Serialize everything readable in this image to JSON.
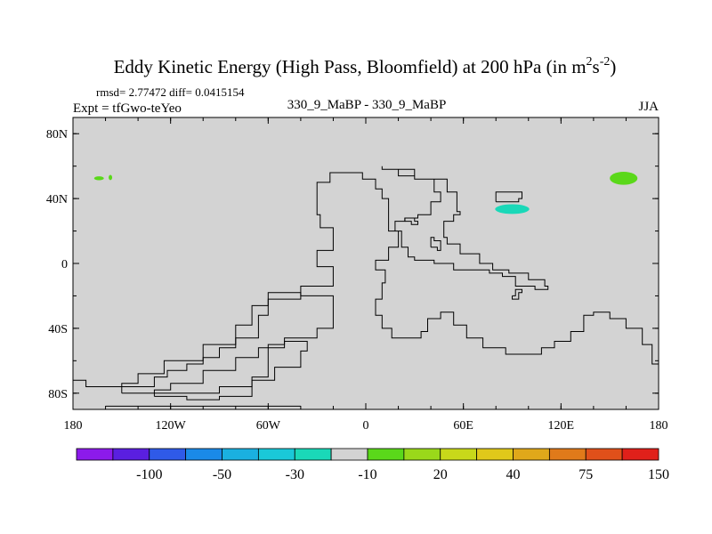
{
  "chart_data": {
    "type": "contour_map",
    "title": {
      "main": "Eddy Kinetic Energy (High Pass, Bloomfield) at 200 hPa (in m",
      "sup1": "2",
      "mid": "s",
      "sup2": "-2",
      "end": ")"
    },
    "stats": "rmsd= 2.77472 diff= 0.0415154",
    "experiment": "Expt = tfGwo-teYeo",
    "subtitle": "330_9_MaBP - 330_9_MaBP",
    "season": "JJA",
    "x_range": [
      -180,
      180
    ],
    "y_range": [
      -90,
      90
    ],
    "x_ticks": [
      {
        "value": -180,
        "label": "180"
      },
      {
        "value": -120,
        "label": "120W"
      },
      {
        "value": -60,
        "label": "60W"
      },
      {
        "value": 0,
        "label": "0"
      },
      {
        "value": 60,
        "label": "60E"
      },
      {
        "value": 120,
        "label": "120E"
      },
      {
        "value": 180,
        "label": "180"
      }
    ],
    "y_ticks": [
      {
        "value": 80,
        "label": "80N"
      },
      {
        "value": 40,
        "label": "40N"
      },
      {
        "value": 0,
        "label": "0"
      },
      {
        "value": -40,
        "label": "40S"
      },
      {
        "value": -80,
        "label": "80S"
      }
    ],
    "background_color": "#d3d3d3",
    "colorbar": {
      "colors": [
        "#8c1aeb",
        "#5a1fe0",
        "#2f5ae8",
        "#1a8ae8",
        "#1ab0e0",
        "#1ac8d8",
        "#1ad8b8",
        "#d3d3d3",
        "#5ad81a",
        "#9ad81a",
        "#c8d81a",
        "#e0c81a",
        "#e0a81a",
        "#e07a1a",
        "#e0501a",
        "#e0201a"
      ],
      "labels": [
        {
          "boundary": 2,
          "text": "-100"
        },
        {
          "boundary": 4,
          "text": "-50"
        },
        {
          "boundary": 6,
          "text": "-30"
        },
        {
          "boundary": 8,
          "text": "-10"
        },
        {
          "boundary": 10,
          "text": "20"
        },
        {
          "boundary": 12,
          "text": "40"
        },
        {
          "boundary": 14,
          "text": "75"
        },
        {
          "boundary": 16,
          "text": "150"
        }
      ]
    },
    "anomalies": [
      {
        "name": "positive-small-1",
        "color": "#5ad81a",
        "lon": -164,
        "lat": 52.5,
        "rlon": 3,
        "rlat": 1.2
      },
      {
        "name": "positive-small-2",
        "color": "#5ad81a",
        "lon": -157,
        "lat": 53,
        "rlon": 1.1,
        "rlat": 1.6
      },
      {
        "name": "positive-west-pacific",
        "color": "#5ad81a",
        "lon": 158.5,
        "lat": 52.5,
        "rlon": 8.5,
        "rlat": 4
      },
      {
        "name": "negative-asia",
        "color": "#1ad8b8",
        "lon": 90,
        "lat": 33.5,
        "rlon": 10.5,
        "rlat": 3
      }
    ],
    "coastlines": [
      [
        [
          -180,
          -72
        ],
        [
          -172,
          -76
        ],
        [
          -150,
          -76
        ],
        [
          -130,
          -70
        ],
        [
          -122,
          -66
        ],
        [
          -110,
          -62
        ],
        [
          -100,
          -58
        ],
        [
          -90,
          -52
        ],
        [
          -80,
          -46
        ],
        [
          -66,
          -32
        ],
        [
          -60,
          -22
        ],
        [
          -40,
          -14
        ],
        [
          -20,
          -12
        ],
        [
          -20,
          -2
        ],
        [
          -30,
          2
        ],
        [
          -30,
          8
        ],
        [
          -20,
          14
        ],
        [
          -20,
          22
        ],
        [
          -28,
          30
        ],
        [
          -30,
          38
        ],
        [
          -30,
          50
        ],
        [
          -22,
          56
        ],
        [
          -12,
          56
        ],
        [
          -2,
          52
        ],
        [
          6,
          46
        ],
        [
          10,
          40
        ],
        [
          14,
          30
        ],
        [
          14,
          20
        ],
        [
          22,
          10
        ],
        [
          26,
          4
        ],
        [
          30,
          2
        ],
        [
          42,
          0
        ],
        [
          54,
          -4
        ],
        [
          60,
          -4
        ],
        [
          66,
          -4
        ],
        [
          76,
          -6
        ],
        [
          84,
          -8
        ],
        [
          92,
          -14
        ],
        [
          104,
          -16
        ],
        [
          112,
          -14
        ],
        [
          110,
          -10
        ],
        [
          100,
          -6
        ],
        [
          88,
          -4
        ],
        [
          78,
          0
        ],
        [
          70,
          6
        ],
        [
          58,
          12
        ],
        [
          50,
          16
        ],
        [
          48,
          26
        ],
        [
          54,
          30
        ],
        [
          58,
          32
        ],
        [
          56,
          44
        ],
        [
          50,
          52
        ],
        [
          30,
          58
        ],
        [
          10,
          60
        ],
        [
          10,
          58
        ],
        [
          20,
          54
        ],
        [
          30,
          52
        ],
        [
          42,
          44
        ],
        [
          46,
          38
        ],
        [
          40,
          30
        ],
        [
          32,
          28
        ],
        [
          24,
          26
        ],
        [
          18,
          20
        ],
        [
          20,
          10
        ],
        [
          14,
          2
        ],
        [
          6,
          -4
        ],
        [
          12,
          -12
        ],
        [
          10,
          -22
        ],
        [
          6,
          -32
        ],
        [
          10,
          -40
        ],
        [
          16,
          -46
        ],
        [
          28,
          -46
        ],
        [
          34,
          -42
        ],
        [
          38,
          -34
        ],
        [
          46,
          -30
        ],
        [
          54,
          -38
        ],
        [
          62,
          -46
        ],
        [
          72,
          -52
        ],
        [
          86,
          -56
        ],
        [
          100,
          -56
        ],
        [
          108,
          -52
        ],
        [
          116,
          -48
        ],
        [
          126,
          -42
        ],
        [
          134,
          -32
        ],
        [
          140,
          -30
        ],
        [
          150,
          -34
        ],
        [
          160,
          -40
        ],
        [
          170,
          -50
        ],
        [
          176,
          -62
        ],
        [
          180,
          -74
        ]
      ],
      [
        [
          -150,
          -80
        ],
        [
          -120,
          -80
        ],
        [
          -90,
          -76
        ],
        [
          -70,
          -70
        ],
        [
          -60,
          -62
        ],
        [
          -60,
          -50
        ],
        [
          -50,
          -46
        ],
        [
          -30,
          -40
        ],
        [
          -20,
          -32
        ],
        [
          -20,
          -20
        ],
        [
          -40,
          -18
        ],
        [
          -60,
          -26
        ],
        [
          -70,
          -38
        ],
        [
          -80,
          -50
        ],
        [
          -100,
          -60
        ],
        [
          -124,
          -68
        ],
        [
          -140,
          -74
        ],
        [
          -150,
          -80
        ]
      ],
      [
        [
          -130,
          -82
        ],
        [
          -110,
          -84
        ],
        [
          -90,
          -82
        ],
        [
          -70,
          -72
        ],
        [
          -56,
          -64
        ],
        [
          -40,
          -54
        ],
        [
          -36,
          -48
        ],
        [
          -50,
          -52
        ],
        [
          -66,
          -58
        ],
        [
          -80,
          -66
        ],
        [
          -100,
          -74
        ],
        [
          -120,
          -78
        ],
        [
          -130,
          -82
        ]
      ],
      [
        [
          80,
          38
        ],
        [
          94,
          40
        ],
        [
          96,
          44
        ],
        [
          86,
          44
        ],
        [
          80,
          38
        ]
      ],
      [
        [
          90,
          -20
        ],
        [
          92,
          -16
        ],
        [
          96,
          -18
        ],
        [
          94,
          -22
        ],
        [
          90,
          -20
        ]
      ],
      [
        [
          24,
          26
        ],
        [
          28,
          24
        ],
        [
          32,
          26
        ],
        [
          30,
          28
        ],
        [
          24,
          26
        ]
      ],
      [
        [
          40,
          10
        ],
        [
          44,
          8
        ],
        [
          46,
          14
        ],
        [
          42,
          16
        ],
        [
          40,
          10
        ]
      ],
      [
        [
          -160,
          -88
        ],
        [
          -40,
          -88
        ]
      ]
    ]
  }
}
